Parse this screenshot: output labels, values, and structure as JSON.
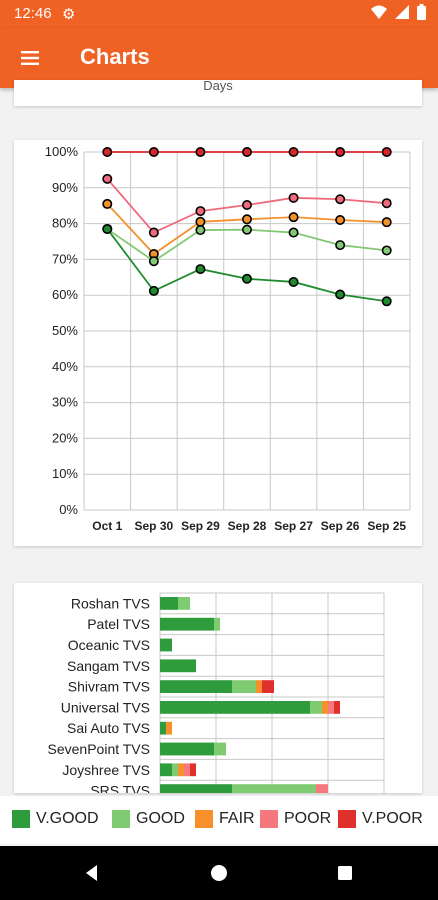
{
  "status_bar": {
    "time": "12:46"
  },
  "app_bar": {
    "title": "Charts"
  },
  "top_card": {
    "partial_text": "Days"
  },
  "colors": {
    "app_bar": "#ef6223",
    "v_good": "#2e9b3c",
    "good": "#7fcb71",
    "fair": "#f7902a",
    "poor": "#f4787d",
    "v_poor": "#e0302b"
  },
  "chart_data": [
    {
      "type": "line",
      "x": [
        "Oct 1",
        "Sep 30",
        "Sep 29",
        "Sep 28",
        "Sep 27",
        "Sep 26",
        "Sep 25"
      ],
      "y_ticks": [
        "0%",
        "10%",
        "20%",
        "30%",
        "40%",
        "50%",
        "60%",
        "70%",
        "80%",
        "90%",
        "100%"
      ],
      "ylim": [
        0,
        100
      ],
      "grid": true,
      "series": [
        {
          "key": "v_poor",
          "color": "#d9262b",
          "values": [
            100,
            100,
            100,
            100,
            100,
            100,
            100
          ]
        },
        {
          "key": "poor",
          "color": "#ef6a7c",
          "values": [
            92.5,
            77.5,
            83.5,
            85.2,
            87.2,
            86.8,
            85.7
          ]
        },
        {
          "key": "fair",
          "color": "#f2912e",
          "values": [
            85.5,
            71.5,
            80.5,
            81.2,
            81.8,
            81.0,
            80.4
          ]
        },
        {
          "key": "good",
          "color": "#84c876",
          "values": [
            78.5,
            69.5,
            78.2,
            78.3,
            77.5,
            74.0,
            72.5
          ]
        },
        {
          "key": "v_good",
          "color": "#1e8c2e",
          "values": [
            78.5,
            61.2,
            67.3,
            64.6,
            63.7,
            60.2,
            58.3
          ]
        }
      ]
    },
    {
      "type": "bar",
      "orientation": "horizontal",
      "stacked": true,
      "categories": [
        "Roshan TVS",
        "Patel TVS",
        "Oceanic TVS",
        "Sangam TVS",
        "Shivram TVS",
        "Universal TVS",
        "Sai Auto TVS",
        "SevenPoint TVS",
        "Joyshree TVS",
        "SRS TVS"
      ],
      "series": [
        {
          "key": "v_good",
          "values": [
            3,
            9,
            2,
            6,
            12,
            25,
            1,
            9,
            2,
            12
          ]
        },
        {
          "key": "good",
          "values": [
            2,
            1,
            0,
            0,
            4,
            2,
            0,
            2,
            1,
            14
          ]
        },
        {
          "key": "fair",
          "values": [
            0,
            0,
            0,
            0,
            1,
            1,
            1,
            0,
            1,
            0
          ]
        },
        {
          "key": "poor",
          "values": [
            0,
            0,
            0,
            0,
            0,
            1,
            0,
            0,
            1,
            2
          ]
        },
        {
          "key": "v_poor",
          "values": [
            0,
            0,
            0,
            0,
            2,
            1,
            0,
            0,
            1,
            0
          ]
        }
      ]
    }
  ],
  "legend": [
    {
      "label": "V.GOOD",
      "color": "#2e9b3c"
    },
    {
      "label": "GOOD",
      "color": "#7fcb71"
    },
    {
      "label": "FAIR",
      "color": "#f7902a"
    },
    {
      "label": "POOR",
      "color": "#f4787d"
    },
    {
      "label": "V.POOR",
      "color": "#e0302b"
    }
  ]
}
